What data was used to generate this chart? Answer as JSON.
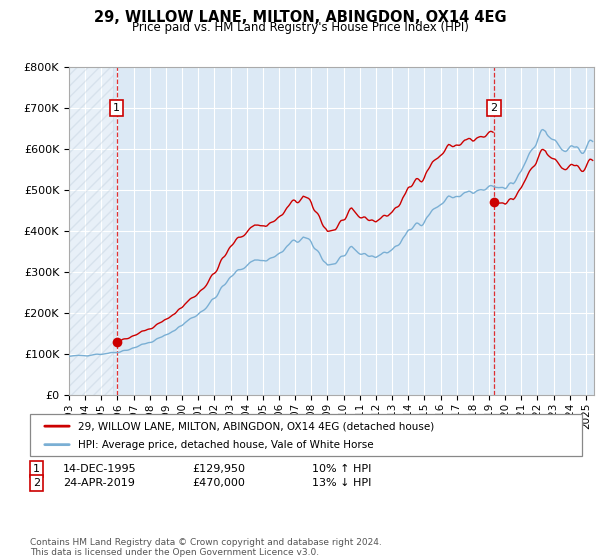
{
  "title": "29, WILLOW LANE, MILTON, ABINGDON, OX14 4EG",
  "subtitle": "Price paid vs. HM Land Registry's House Price Index (HPI)",
  "ylabel_ticks": [
    "£0",
    "£100K",
    "£200K",
    "£300K",
    "£400K",
    "£500K",
    "£600K",
    "£700K",
    "£800K"
  ],
  "ytick_vals": [
    0,
    100000,
    200000,
    300000,
    400000,
    500000,
    600000,
    700000,
    800000
  ],
  "ylim": [
    0,
    800000
  ],
  "xlim_start": 1993.0,
  "xlim_end": 2025.5,
  "xtick_years": [
    1993,
    1994,
    1995,
    1996,
    1997,
    1998,
    1999,
    2000,
    2001,
    2002,
    2003,
    2004,
    2005,
    2006,
    2007,
    2008,
    2009,
    2010,
    2011,
    2012,
    2013,
    2014,
    2015,
    2016,
    2017,
    2018,
    2019,
    2020,
    2021,
    2022,
    2023,
    2024,
    2025
  ],
  "hpi_color": "#7aafd4",
  "sale_color": "#cc0000",
  "sale1_year": 1995.96,
  "sale1_price": 129950,
  "sale2_year": 2019.31,
  "sale2_price": 470000,
  "legend_sale_label": "29, WILLOW LANE, MILTON, ABINGDON, OX14 4EG (detached house)",
  "legend_hpi_label": "HPI: Average price, detached house, Vale of White Horse",
  "note1_date": "14-DEC-1995",
  "note1_price": "£129,950",
  "note1_hpi": "10% ↑ HPI",
  "note2_date": "24-APR-2019",
  "note2_price": "£470,000",
  "note2_hpi": "13% ↓ HPI",
  "footer": "Contains HM Land Registry data © Crown copyright and database right 2024.\nThis data is licensed under the Open Government Licence v3.0.",
  "bg_color": "#dce9f5",
  "hatch_region_end": 1995.75,
  "grid_color": "#ffffff",
  "spine_color": "#aaaaaa"
}
